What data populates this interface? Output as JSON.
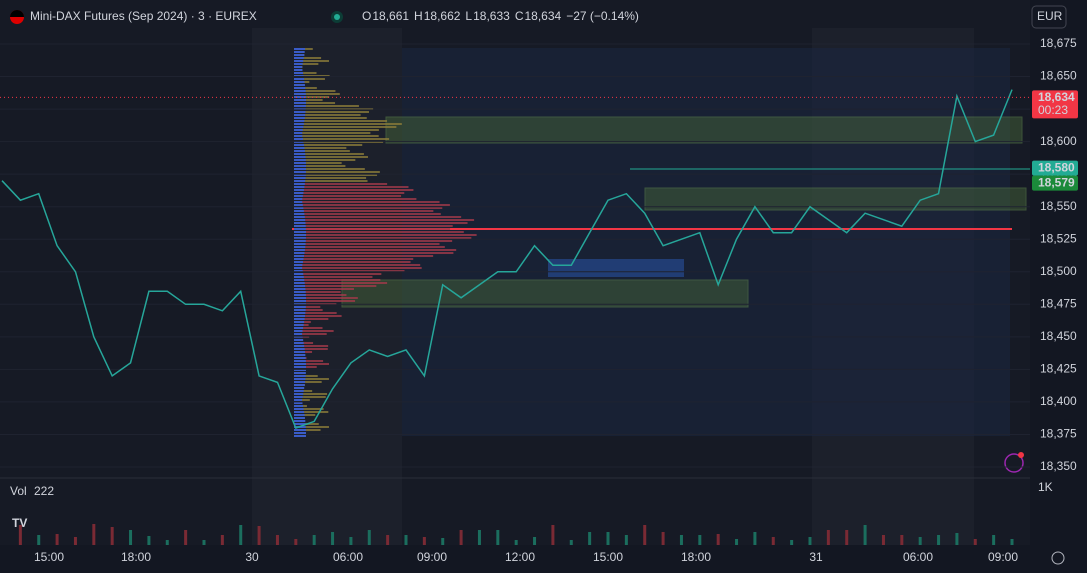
{
  "header": {
    "symbol": "Mini-DAX Futures (Sep 2024) · 3 · EUREX",
    "ohlc": [
      {
        "key": "O",
        "value": "18,661"
      },
      {
        "key": "H",
        "value": "18,662"
      },
      {
        "key": "L",
        "value": "18,633"
      },
      {
        "key": "C",
        "value": "18,634"
      }
    ],
    "change": "−27 (−0.14%)"
  },
  "currency": "EUR",
  "price_axis": {
    "ylim": [
      18350,
      18675
    ],
    "ticks": [
      {
        "value": 18675,
        "label": "18,675"
      },
      {
        "value": 18650,
        "label": "18,650"
      },
      {
        "value": 18625,
        "label": "18,625"
      },
      {
        "value": 18600,
        "label": "18,600"
      },
      {
        "value": 18575,
        "label": "18,575"
      },
      {
        "value": 18550,
        "label": "18,550"
      },
      {
        "value": 18525,
        "label": "18,525"
      },
      {
        "value": 18500,
        "label": "18,500"
      },
      {
        "value": 18475,
        "label": "18,475"
      },
      {
        "value": 18450,
        "label": "18,450"
      },
      {
        "value": 18425,
        "label": "18,425"
      },
      {
        "value": 18400,
        "label": "18,400"
      },
      {
        "value": 18375,
        "label": "18,375"
      },
      {
        "value": 18350,
        "label": "18,350"
      }
    ]
  },
  "price_markers": [
    {
      "value": 18634,
      "label": "18,634",
      "sub": "00:23",
      "color": "#f23645"
    },
    {
      "value": 18580,
      "label": "18,580",
      "color": "#22ab94"
    },
    {
      "value": 18579,
      "label": "18,579",
      "color": "#1b8a3a"
    }
  ],
  "time_axis": [
    "15:00",
    "18:00",
    "30",
    "06:00",
    "09:00",
    "12:00",
    "15:00",
    "18:00",
    "31",
    "06:00",
    "09:00"
  ],
  "volume": {
    "label": "Vol",
    "value": "222",
    "axis": "1K"
  },
  "trace": {
    "color": "#26a69a",
    "values": [
      18570,
      18555,
      18560,
      18520,
      18500,
      18450,
      18420,
      18430,
      18485,
      18485,
      18475,
      18475,
      18470,
      18485,
      18420,
      18415,
      18380,
      18385,
      18410,
      18430,
      18440,
      18435,
      18440,
      18420,
      18490,
      18480,
      18490,
      18500,
      18500,
      18520,
      18505,
      18505,
      18530,
      18555,
      18560,
      18545,
      18520,
      18525,
      18530,
      18490,
      18525,
      18550,
      18530,
      18530,
      18550,
      18540,
      18530,
      18545,
      18540,
      18535,
      18555,
      18560,
      18635,
      18600,
      18605,
      18640
    ]
  }
}
